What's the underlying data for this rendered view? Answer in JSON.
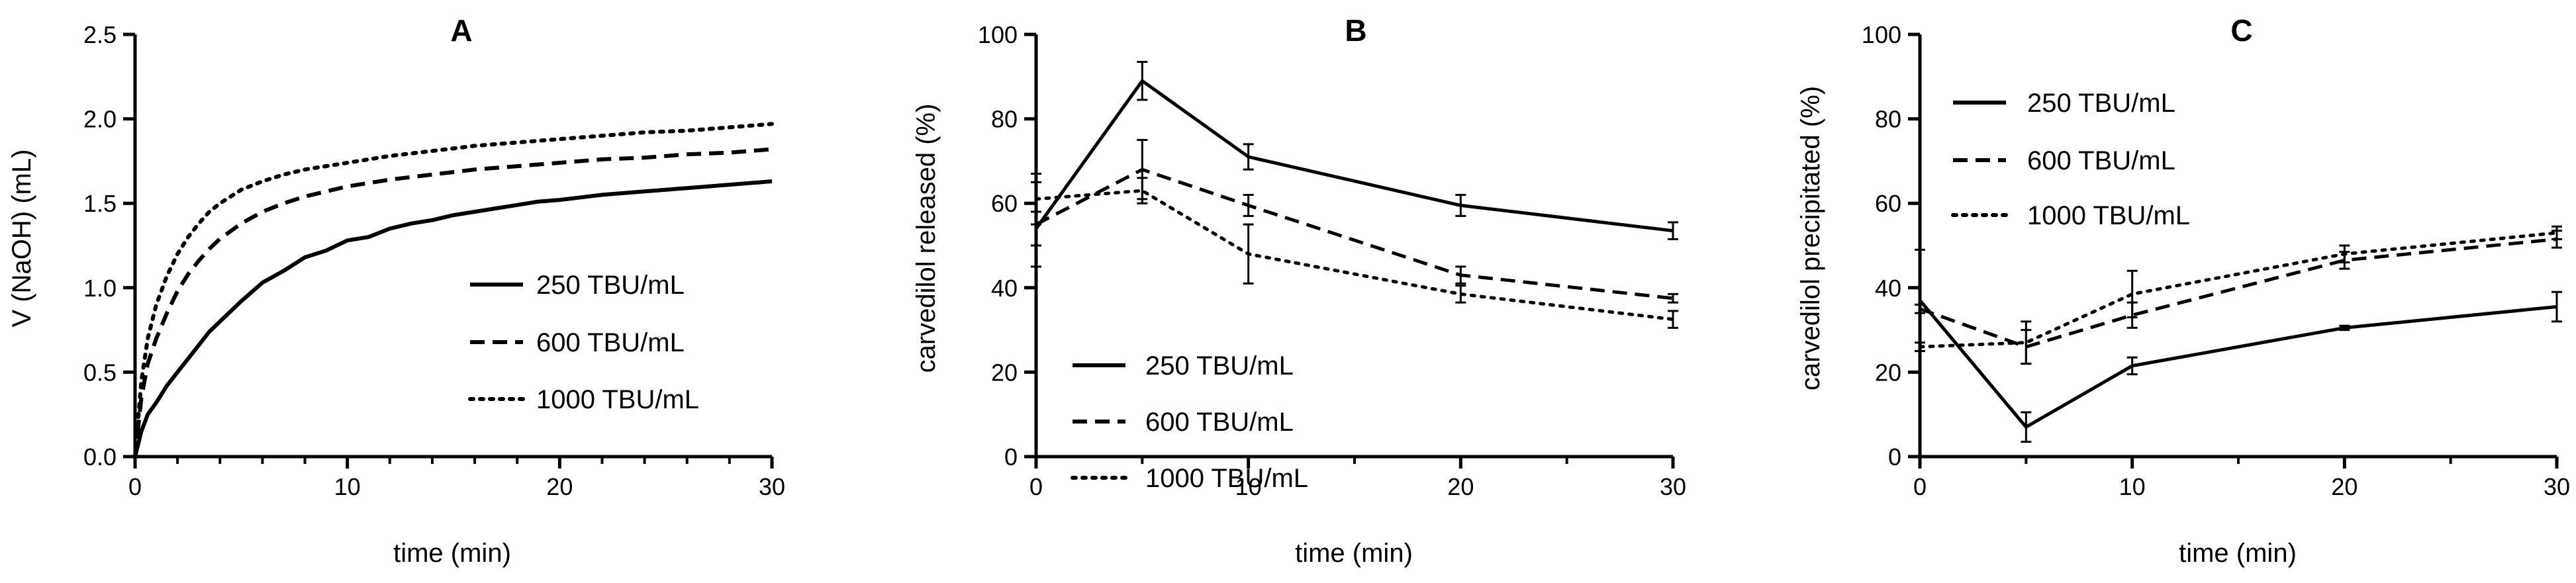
{
  "chart_data": [
    {
      "panel": "A",
      "type": "line",
      "title": "A",
      "xlabel": "time (min)",
      "ylabel": "V (NaOH) (mL)",
      "xlim": [
        0,
        30
      ],
      "ylim": [
        0,
        2.5
      ],
      "xticks": [
        0,
        10,
        20,
        30
      ],
      "yticks": [
        0.0,
        0.5,
        1.0,
        1.5,
        2.0,
        2.5
      ],
      "ytick_labels": [
        "0.0",
        "0.5",
        "1.0",
        "1.5",
        "2.0",
        "2.5"
      ],
      "legend_position": "center-right",
      "series": [
        {
          "name": "250 TBU/mL",
          "style": "solid",
          "x": [
            0,
            0.3,
            0.6,
            1,
            1.5,
            2,
            2.5,
            3,
            3.5,
            4,
            5,
            6,
            7,
            8,
            9,
            10,
            11,
            12,
            13,
            14,
            15,
            16,
            17,
            18,
            19,
            20,
            22,
            24,
            26,
            28,
            30
          ],
          "y": [
            0,
            0.15,
            0.25,
            0.32,
            0.42,
            0.5,
            0.58,
            0.66,
            0.74,
            0.8,
            0.92,
            1.03,
            1.1,
            1.18,
            1.22,
            1.28,
            1.3,
            1.35,
            1.38,
            1.4,
            1.43,
            1.45,
            1.47,
            1.49,
            1.51,
            1.52,
            1.55,
            1.57,
            1.59,
            1.61,
            1.63
          ]
        },
        {
          "name": "600 TBU/mL",
          "style": "dashed",
          "x": [
            0,
            0.3,
            0.6,
            1,
            1.5,
            2,
            2.5,
            3,
            3.5,
            4,
            5,
            6,
            7,
            8,
            9,
            10,
            12,
            14,
            16,
            18,
            20,
            22,
            24,
            26,
            28,
            30
          ],
          "y": [
            0,
            0.35,
            0.55,
            0.7,
            0.85,
            0.98,
            1.08,
            1.16,
            1.23,
            1.29,
            1.38,
            1.45,
            1.5,
            1.54,
            1.57,
            1.6,
            1.64,
            1.67,
            1.7,
            1.72,
            1.74,
            1.76,
            1.77,
            1.79,
            1.8,
            1.82
          ]
        },
        {
          "name": "1000 TBU/mL",
          "style": "dotted",
          "x": [
            0,
            0.3,
            0.6,
            1,
            1.5,
            2,
            2.5,
            3,
            3.5,
            4,
            5,
            6,
            7,
            8,
            9,
            10,
            12,
            14,
            16,
            18,
            20,
            22,
            24,
            26,
            28,
            30
          ],
          "y": [
            0,
            0.45,
            0.7,
            0.9,
            1.07,
            1.2,
            1.3,
            1.38,
            1.45,
            1.5,
            1.58,
            1.63,
            1.67,
            1.7,
            1.72,
            1.74,
            1.78,
            1.81,
            1.84,
            1.86,
            1.88,
            1.9,
            1.92,
            1.93,
            1.95,
            1.97
          ]
        }
      ]
    },
    {
      "panel": "B",
      "type": "line",
      "title": "B",
      "xlabel": "time (min)",
      "ylabel": "carvedilol released (%)",
      "xlim": [
        0,
        30
      ],
      "ylim": [
        0,
        100
      ],
      "xticks": [
        0,
        10,
        20,
        30
      ],
      "yticks": [
        0,
        20,
        40,
        60,
        80,
        100
      ],
      "ytick_labels": [
        "0",
        "20",
        "40",
        "60",
        "80",
        "100"
      ],
      "legend_position": "bottom-left",
      "series": [
        {
          "name": "250 TBU/mL",
          "style": "solid",
          "x": [
            0,
            5,
            10,
            20,
            30
          ],
          "y": [
            54,
            89,
            71,
            59.5,
            53.5
          ],
          "err": [
            4,
            4.5,
            3,
            2.5,
            2
          ]
        },
        {
          "name": "600 TBU/mL",
          "style": "dashed",
          "x": [
            0,
            5,
            10,
            20,
            30
          ],
          "y": [
            55,
            68,
            59.5,
            43,
            37.5
          ],
          "err": [
            10,
            7,
            2.5,
            2,
            1
          ]
        },
        {
          "name": "1000 TBU/mL",
          "style": "dotted",
          "x": [
            0,
            5,
            10,
            20,
            30
          ],
          "y": [
            61,
            63,
            48,
            38.5,
            32.5
          ],
          "err": [
            6,
            3,
            7,
            2,
            2
          ]
        }
      ]
    },
    {
      "panel": "C",
      "type": "line",
      "title": "C",
      "xlabel": "time (min)",
      "ylabel": "carvedilol precipitated (%)",
      "xlim": [
        0,
        30
      ],
      "ylim": [
        0,
        100
      ],
      "xticks": [
        0,
        10,
        20,
        30
      ],
      "yticks": [
        0,
        20,
        40,
        60,
        80,
        100
      ],
      "ytick_labels": [
        "0",
        "20",
        "40",
        "60",
        "80",
        "100"
      ],
      "legend_position": "top-left",
      "series": [
        {
          "name": "250 TBU/mL",
          "style": "solid",
          "x": [
            0,
            5,
            10,
            20,
            30
          ],
          "y": [
            37,
            7,
            21.5,
            30.5,
            35.5
          ],
          "err": [
            12,
            3.5,
            2,
            0.5,
            3.5
          ]
        },
        {
          "name": "600 TBU/mL",
          "style": "dashed",
          "x": [
            0,
            5,
            10,
            20,
            30
          ],
          "y": [
            35,
            26,
            33.5,
            46.5,
            51.5
          ],
          "err": [
            1,
            4,
            3,
            2,
            2
          ]
        },
        {
          "name": "1000 TBU/mL",
          "style": "dotted",
          "x": [
            0,
            5,
            10,
            20,
            30
          ],
          "y": [
            26,
            27,
            38.5,
            48,
            53
          ],
          "err": [
            1,
            5,
            5.5,
            2,
            1.5
          ]
        }
      ]
    }
  ]
}
